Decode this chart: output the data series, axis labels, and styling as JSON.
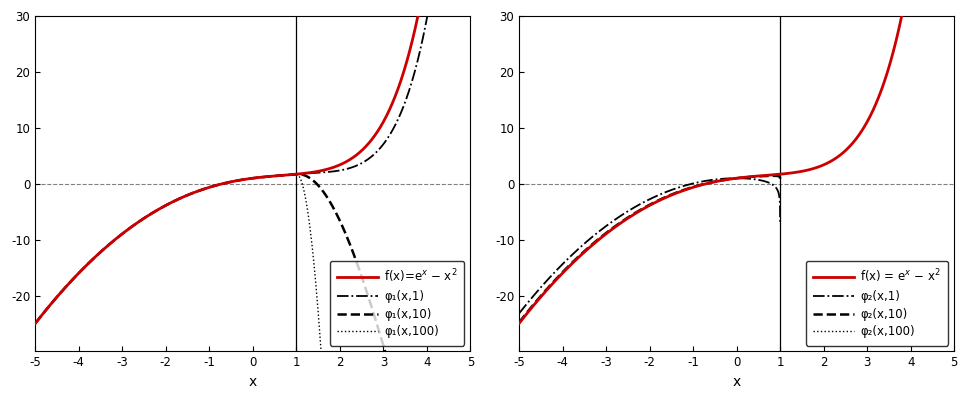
{
  "xlim": [
    -5,
    5
  ],
  "ylim": [
    -30,
    30
  ],
  "x_line": 1.0,
  "yticks": [
    -20,
    -10,
    0,
    10,
    20,
    30
  ],
  "xticks": [
    -5,
    -4,
    -3,
    -2,
    -1,
    0,
    1,
    2,
    3,
    4,
    5
  ],
  "mu_values": [
    1,
    10,
    100
  ],
  "f_color": "#cc0000",
  "f_label_left": "f(x)=e$^x$ $-$ x$^2$",
  "f_label_right": "f(x) = e$^x$ $-$ x$^2$",
  "phi1_labels": [
    "φ₁(x,1)",
    "φ₁(x,10)",
    "φ₁(x,100)"
  ],
  "phi2_labels": [
    "φ₂(x,1)",
    "φ₂(x,10)",
    "φ₂(x,100)"
  ],
  "xlabel": "x",
  "figsize": [
    9.69,
    4.0
  ],
  "dpi": 100
}
